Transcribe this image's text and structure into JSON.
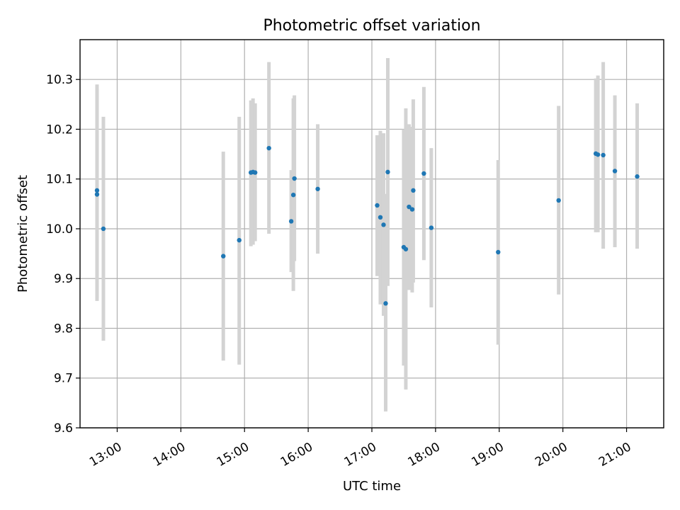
{
  "chart_data": {
    "type": "scatter",
    "title": "Photometric offset variation",
    "xlabel": "UTC time",
    "ylabel": "Photometric offset",
    "x_tick_labels": [
      "13:00",
      "14:00",
      "15:00",
      "16:00",
      "17:00",
      "18:00",
      "19:00",
      "20:00",
      "21:00"
    ],
    "y_tick_labels": [
      "9.6",
      "9.7",
      "9.8",
      "9.9",
      "10.0",
      "10.1",
      "10.2",
      "10.3"
    ],
    "xlim": [
      "12:25",
      "21:35"
    ],
    "ylim": [
      9.6,
      10.38
    ],
    "grid": true,
    "colors": {
      "points": "#1f77b4",
      "errorbars": "#d3d3d3"
    },
    "points": [
      {
        "x": "12:41",
        "y": 10.077,
        "ymin": 9.86,
        "ymax": 10.29
      },
      {
        "x": "12:41",
        "y": 10.069,
        "ymin": 9.855,
        "ymax": 10.28
      },
      {
        "x": "12:47",
        "y": 10.0,
        "ymin": 9.775,
        "ymax": 10.225
      },
      {
        "x": "14:40",
        "y": 9.945,
        "ymin": 9.735,
        "ymax": 10.155
      },
      {
        "x": "14:55",
        "y": 9.977,
        "ymin": 9.727,
        "ymax": 10.225
      },
      {
        "x": "15:06",
        "y": 10.113,
        "ymin": 9.965,
        "ymax": 10.258
      },
      {
        "x": "15:08",
        "y": 10.114,
        "ymin": 9.968,
        "ymax": 10.262
      },
      {
        "x": "15:10",
        "y": 10.113,
        "ymin": 9.975,
        "ymax": 10.252
      },
      {
        "x": "15:23",
        "y": 10.162,
        "ymin": 9.99,
        "ymax": 10.335
      },
      {
        "x": "15:44",
        "y": 10.015,
        "ymin": 9.913,
        "ymax": 10.118
      },
      {
        "x": "15:46",
        "y": 10.068,
        "ymin": 9.875,
        "ymax": 10.262
      },
      {
        "x": "15:47",
        "y": 10.101,
        "ymin": 9.935,
        "ymax": 10.268
      },
      {
        "x": "16:09",
        "y": 10.08,
        "ymin": 9.95,
        "ymax": 10.21
      },
      {
        "x": "17:05",
        "y": 10.047,
        "ymin": 9.905,
        "ymax": 10.188
      },
      {
        "x": "17:08",
        "y": 10.023,
        "ymin": 9.848,
        "ymax": 10.197
      },
      {
        "x": "17:11",
        "y": 10.008,
        "ymin": 9.825,
        "ymax": 10.192
      },
      {
        "x": "17:13",
        "y": 9.85,
        "ymin": 9.633,
        "ymax": 10.07
      },
      {
        "x": "17:15",
        "y": 10.114,
        "ymin": 9.885,
        "ymax": 10.343
      },
      {
        "x": "17:30",
        "y": 9.963,
        "ymin": 9.725,
        "ymax": 10.2
      },
      {
        "x": "17:32",
        "y": 9.959,
        "ymin": 9.677,
        "ymax": 10.242
      },
      {
        "x": "17:35",
        "y": 10.044,
        "ymin": 9.877,
        "ymax": 10.21
      },
      {
        "x": "17:38",
        "y": 10.039,
        "ymin": 9.872,
        "ymax": 10.205
      },
      {
        "x": "17:39",
        "y": 10.077,
        "ymin": 9.892,
        "ymax": 10.26
      },
      {
        "x": "17:49",
        "y": 10.111,
        "ymin": 9.937,
        "ymax": 10.285
      },
      {
        "x": "17:56",
        "y": 10.002,
        "ymin": 9.842,
        "ymax": 10.162
      },
      {
        "x": "18:59",
        "y": 9.953,
        "ymin": 9.767,
        "ymax": 10.138
      },
      {
        "x": "19:56",
        "y": 10.057,
        "ymin": 9.868,
        "ymax": 10.247
      },
      {
        "x": "20:31",
        "y": 10.151,
        "ymin": 9.993,
        "ymax": 10.302
      },
      {
        "x": "20:33",
        "y": 10.149,
        "ymin": 9.993,
        "ymax": 10.308
      },
      {
        "x": "20:38",
        "y": 10.148,
        "ymin": 9.96,
        "ymax": 10.335
      },
      {
        "x": "20:49",
        "y": 10.116,
        "ymin": 9.963,
        "ymax": 10.268
      },
      {
        "x": "21:10",
        "y": 10.105,
        "ymin": 9.96,
        "ymax": 10.252
      }
    ]
  }
}
